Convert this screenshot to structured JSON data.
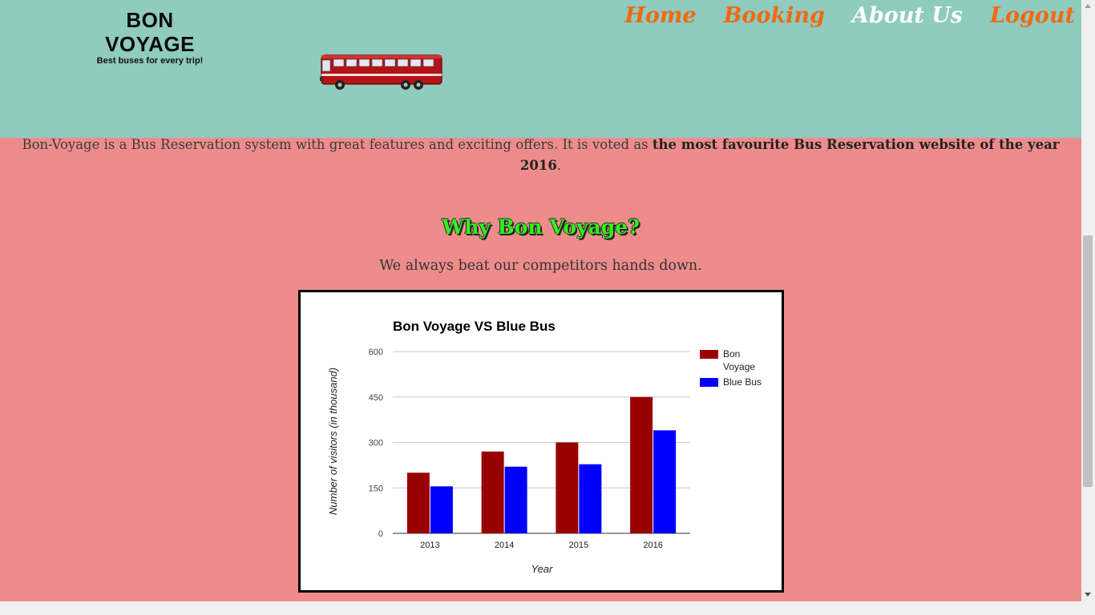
{
  "header": {
    "brand_title": "BON VOYAGE",
    "brand_tagline": "Best buses for every trip!",
    "bus_image": "bus-illustration",
    "nav": [
      {
        "label": "Home",
        "active": false
      },
      {
        "label": "Booking",
        "active": false
      },
      {
        "label": "About Us",
        "active": true
      },
      {
        "label": "Logout",
        "active": false
      }
    ]
  },
  "intro": {
    "text": "Bon-Voyage is a Bus Reservation system with great features and exciting offers. It is voted as ",
    "highlight": "the most favourite Bus Reservation website of the year 2016",
    "end": "."
  },
  "why": {
    "heading": "Why Bon Voyage?",
    "subtext": "We always beat our competitors hands down."
  },
  "colors": {
    "header_bg": "#8fcbbe",
    "page_bg": "#ee8c8c",
    "nav_link": "#f06a12",
    "heading_green": "#33ee22"
  },
  "chart_data": {
    "type": "bar",
    "title": "Bon Voyage VS Blue Bus",
    "xlabel": "Year",
    "ylabel": "Number of visitors (in thousand)",
    "categories": [
      "2013",
      "2014",
      "2015",
      "2016"
    ],
    "series": [
      {
        "name": "Bon Voyage",
        "color": "#990000",
        "values": [
          200,
          270,
          300,
          450
        ]
      },
      {
        "name": "Blue Bus",
        "color": "#0000ff",
        "values": [
          155,
          220,
          228,
          340
        ]
      }
    ],
    "ylim": [
      0,
      600
    ],
    "yticks": [
      0,
      150,
      300,
      450,
      600
    ],
    "grid": true,
    "legend": "right"
  }
}
